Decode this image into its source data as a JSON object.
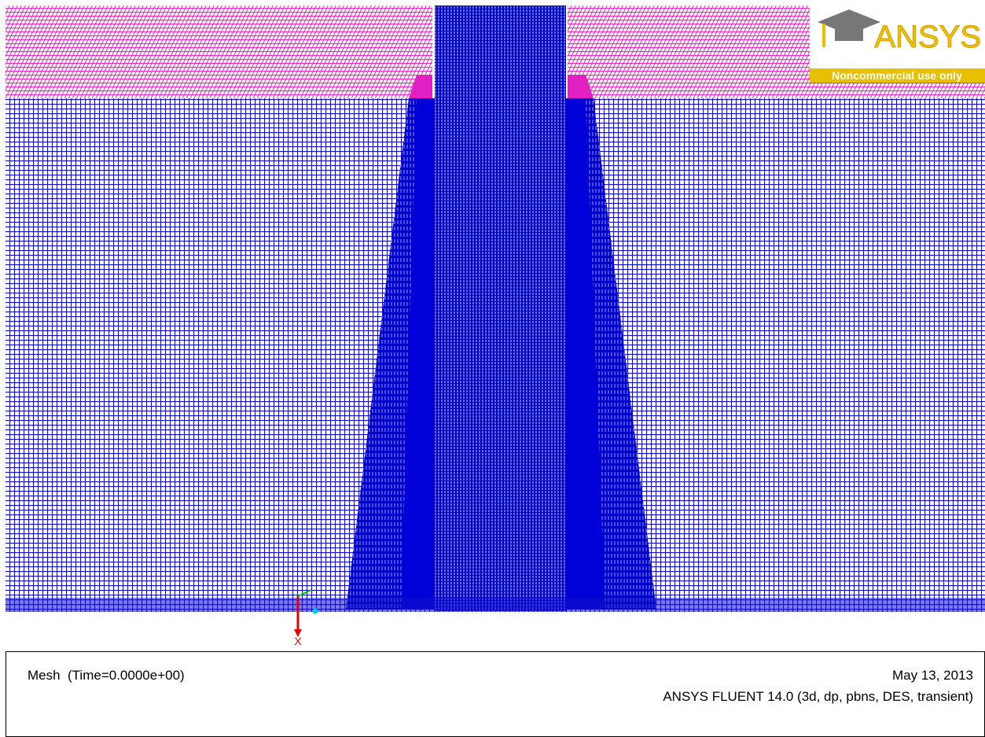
{
  "viewport": {
    "mesh_label": "Mesh  (Time=0.0000e+00)",
    "date": "May 13, 2013",
    "version": "ANSYS FLUENT 14.0 (3d, dp, pbns, DES, transient)"
  },
  "logo": {
    "brand": "ANSYS",
    "note": "Noncommercial use only"
  },
  "axes": {
    "x": "X"
  }
}
